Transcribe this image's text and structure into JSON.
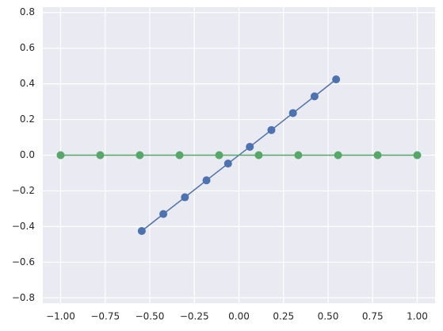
{
  "chart_data": {
    "type": "line",
    "series": [
      {
        "color": "#4c72b0",
        "x": [
          -0.545,
          -0.424,
          -0.303,
          -0.182,
          -0.061,
          0.061,
          0.182,
          0.303,
          0.424,
          0.545
        ],
        "values": [
          -0.425,
          -0.33,
          -0.236,
          -0.141,
          -0.047,
          0.047,
          0.141,
          0.236,
          0.33,
          0.425
        ]
      },
      {
        "color": "#55a868",
        "x": [
          -1,
          -0.778,
          -0.556,
          -0.333,
          -0.111,
          0.111,
          0.333,
          0.556,
          0.778,
          1
        ],
        "values": [
          0,
          0,
          0,
          0,
          0,
          0,
          0,
          0,
          0,
          0
        ]
      }
    ],
    "xlim": [
      -1.1,
      1.1
    ],
    "ylim": [
      -0.83,
      0.83
    ],
    "xticks": [
      {
        "value": -1,
        "label": "−1.00"
      },
      {
        "value": -0.75,
        "label": "−0.75"
      },
      {
        "value": -0.5,
        "label": "−0.50"
      },
      {
        "value": -0.25,
        "label": "−0.25"
      },
      {
        "value": 0,
        "label": "0.00"
      },
      {
        "value": 0.25,
        "label": "0.25"
      },
      {
        "value": 0.5,
        "label": "0.50"
      },
      {
        "value": 0.75,
        "label": "0.75"
      },
      {
        "value": 1,
        "label": "1.00"
      }
    ],
    "yticks": [
      {
        "value": -0.8,
        "label": "−0.8"
      },
      {
        "value": -0.6,
        "label": "−0.6"
      },
      {
        "value": -0.4,
        "label": "−0.4"
      },
      {
        "value": -0.2,
        "label": "−0.2"
      },
      {
        "value": 0,
        "label": "0.0"
      },
      {
        "value": 0.2,
        "label": "0.2"
      },
      {
        "value": 0.4,
        "label": "0.4"
      },
      {
        "value": 0.6,
        "label": "0.6"
      },
      {
        "value": 0.8,
        "label": "0.8"
      }
    ],
    "grid": true,
    "background": "#eaeaf2"
  }
}
